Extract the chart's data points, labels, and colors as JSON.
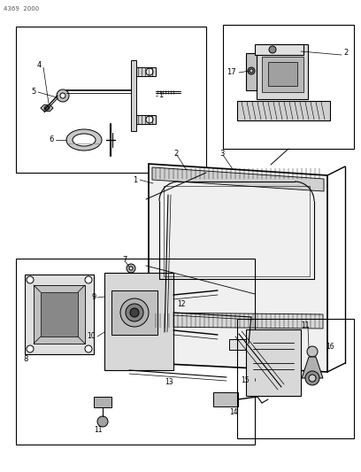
{
  "page_id": "4369  2000",
  "bg_color": "#ffffff",
  "line_color": "#000000",
  "figsize": [
    4.08,
    5.33
  ],
  "dpi": 100,
  "gray_fill": "#c8c8c8",
  "light_gray": "#e8e8e8",
  "mid_gray": "#b0b0b0"
}
